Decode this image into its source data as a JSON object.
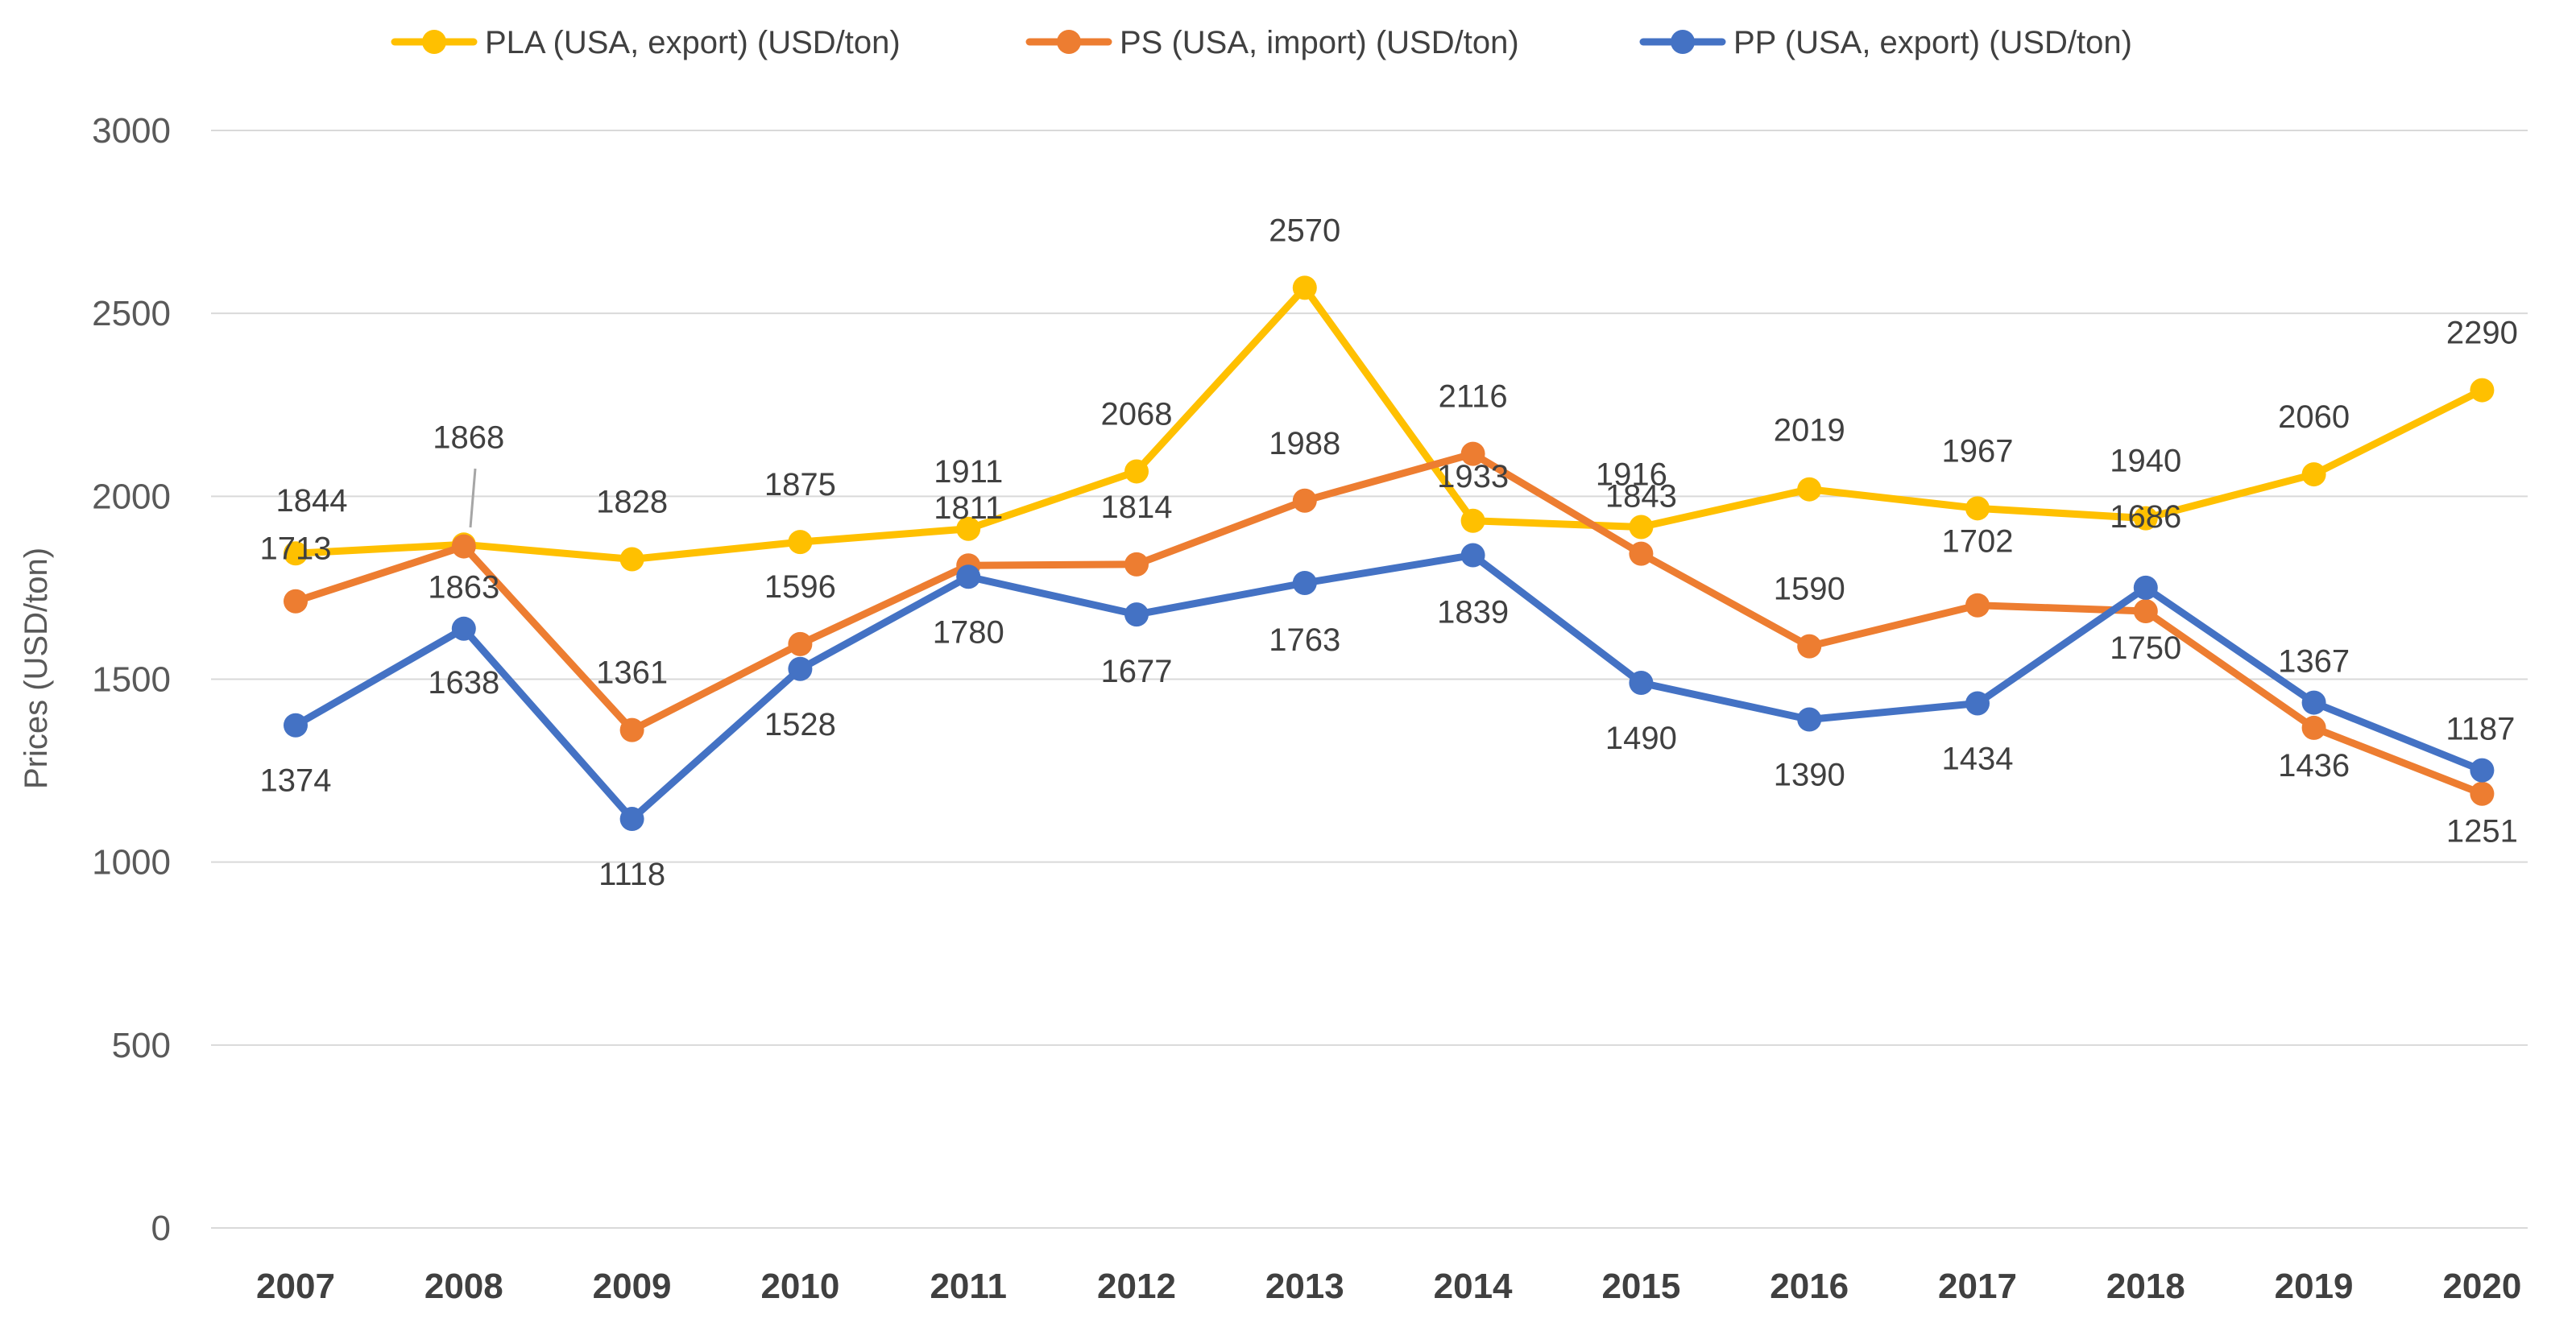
{
  "chart_data": {
    "type": "line",
    "title": "",
    "xlabel": "",
    "ylabel": "Prices (USD/ton)",
    "ylim": [
      0,
      3000
    ],
    "yticks": [
      0,
      500,
      1000,
      1500,
      2000,
      2500,
      3000
    ],
    "grid": true,
    "legend_position": "top",
    "categories": [
      "2007",
      "2008",
      "2009",
      "2010",
      "2011",
      "2012",
      "2013",
      "2014",
      "2015",
      "2016",
      "2017",
      "2018",
      "2019",
      "2020"
    ],
    "series": [
      {
        "name": "PLA (USA, export) (USD/ton)",
        "color": "#FFC000",
        "values": [
          1844,
          1868,
          1828,
          1875,
          1911,
          2068,
          2570,
          1933,
          1916,
          2019,
          1967,
          1940,
          2060,
          2290
        ],
        "labels": [
          "1844",
          "1868",
          "1828",
          "1875",
          "1911",
          "2068",
          "2570",
          "1933",
          "1916",
          "2019",
          "1967",
          "1940",
          "2060",
          "2290"
        ]
      },
      {
        "name": "PS (USA, import) (USD/ton)",
        "color": "#ED7D31",
        "values": [
          1713,
          1863,
          1361,
          1596,
          1811,
          1814,
          1988,
          2116,
          1843,
          1590,
          1702,
          1686,
          1367,
          1187
        ],
        "labels": [
          "1713",
          "1863",
          "1361",
          "1596",
          "1811",
          "1814",
          "1988",
          "2116",
          "1843",
          "1590",
          "1702",
          "1686",
          "1367",
          "1187"
        ]
      },
      {
        "name": "PP (USA, export) (USD/ton)",
        "color": "#4472C4",
        "values": [
          1374,
          1638,
          1118,
          1528,
          1780,
          1677,
          1763,
          1839,
          1490,
          1390,
          1434,
          1750,
          1436,
          1251
        ],
        "labels": [
          "1374",
          "1638",
          "1118",
          "1528",
          "1780",
          "1677",
          "1763",
          "1839",
          "1490",
          "1390",
          "1434",
          "1750",
          "1436",
          "1251"
        ]
      }
    ]
  }
}
